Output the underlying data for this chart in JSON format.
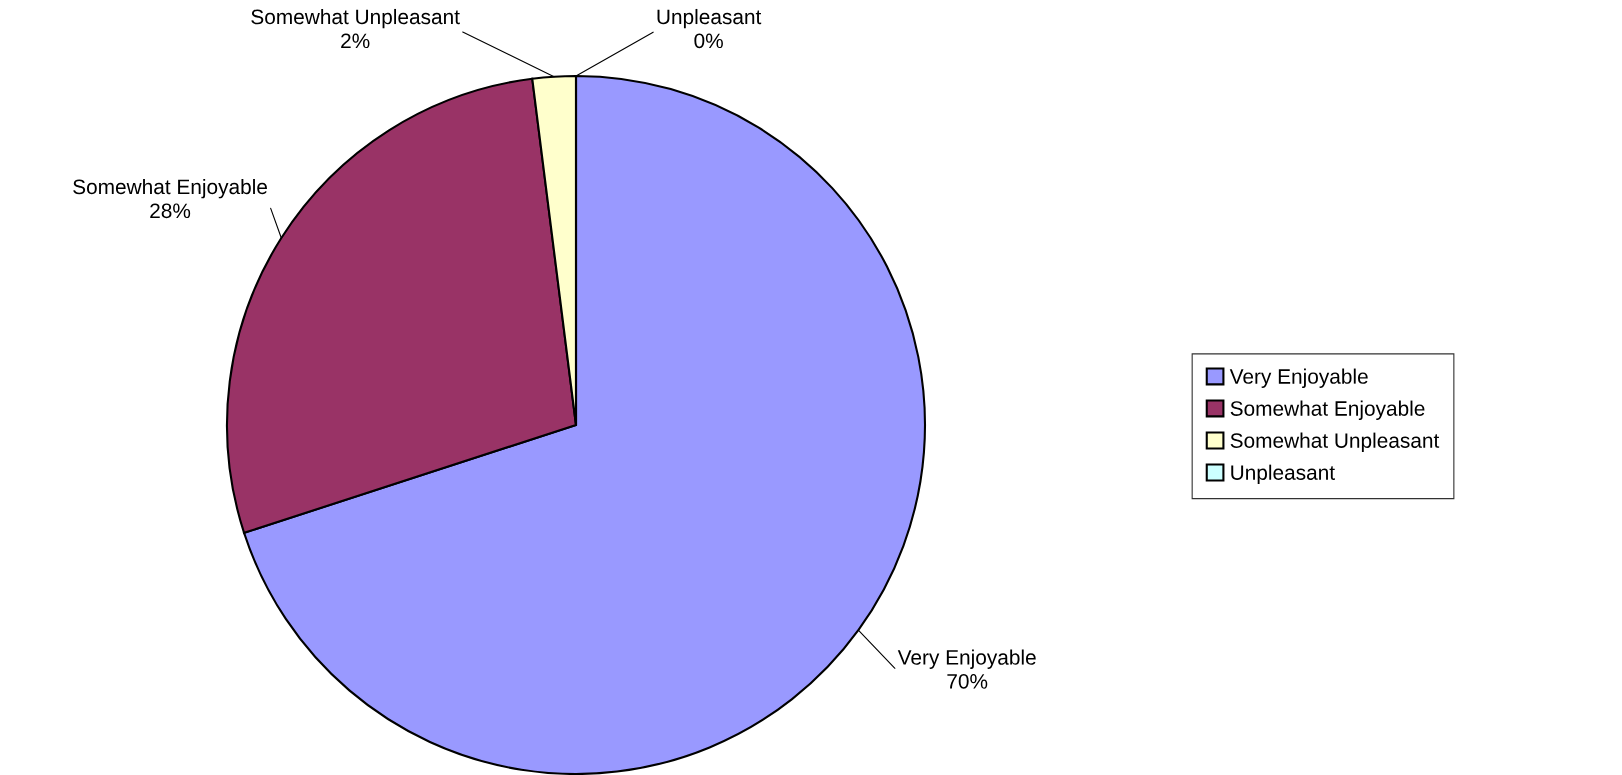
{
  "chart_data": {
    "type": "pie",
    "categories": [
      "Very Enjoyable",
      "Somewhat Enjoyable",
      "Somewhat Unpleasant",
      "Unpleasant"
    ],
    "values": [
      70,
      28,
      2,
      0
    ],
    "value_labels": [
      "70%",
      "28%",
      "2%",
      "0%"
    ],
    "colors": [
      "#9999ff",
      "#993366",
      "#ffffcc",
      "#ccffff"
    ],
    "legend": "right"
  }
}
